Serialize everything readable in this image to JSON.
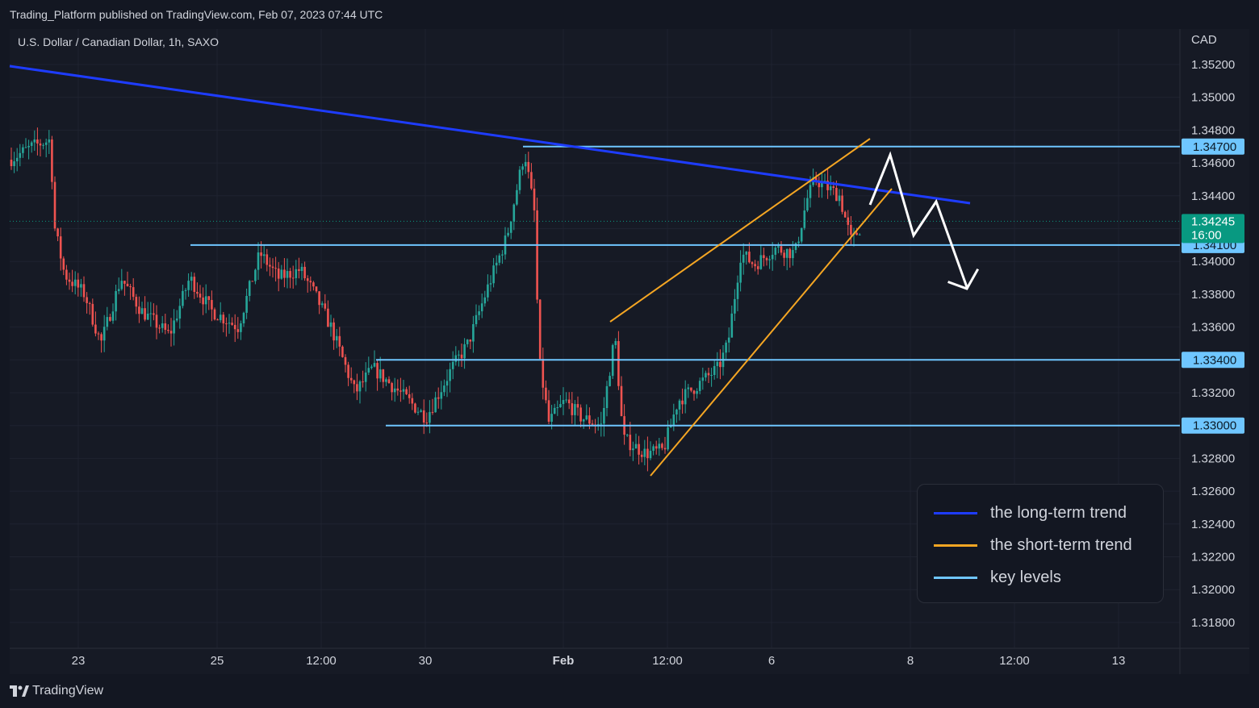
{
  "header": {
    "publisher": "Trading_Platform published on TradingView.com, Feb 07, 2023 07:44 UTC",
    "symbol": "U.S. Dollar / Canadian Dollar, 1h, SAXO"
  },
  "footer": {
    "brand": "TradingView"
  },
  "colors": {
    "up": "#26a69a",
    "down": "#ef5350",
    "long_trend": "#1e3cff",
    "short_trend": "#f5a623",
    "key_level": "#6fc6ff",
    "projection": "#ffffff",
    "current_price": "#089981"
  },
  "chart_data": {
    "type": "candlestick",
    "currency_label": "CAD",
    "ylim": [
      1.317,
      1.354
    ],
    "y_ticks": [
      "1.35200",
      "1.35000",
      "1.34800",
      "1.34600",
      "1.34400",
      "1.34200",
      "1.34000",
      "1.33800",
      "1.33600",
      "1.33400",
      "1.33200",
      "1.33000",
      "1.32800",
      "1.32600",
      "1.32400",
      "1.32200",
      "1.32000",
      "1.31800"
    ],
    "x_ticks": [
      "23",
      "25",
      "12:00",
      "30",
      "Feb",
      "12:00",
      "6",
      "8",
      "12:00",
      "13"
    ],
    "current_price": {
      "value": "1.34245",
      "countdown": "16:00"
    },
    "key_levels": [
      {
        "value": 1.347,
        "label": "1.34700"
      },
      {
        "value": 1.341,
        "label": "1.34100"
      },
      {
        "value": 1.334,
        "label": "1.33400"
      },
      {
        "value": 1.33,
        "label": "1.33000"
      }
    ],
    "legend": [
      {
        "name": "the long-term trend",
        "color": "#1e3cff"
      },
      {
        "name": "the short-term trend",
        "color": "#f5a623"
      },
      {
        "name": "key levels",
        "color": "#6fc6ff"
      }
    ]
  }
}
